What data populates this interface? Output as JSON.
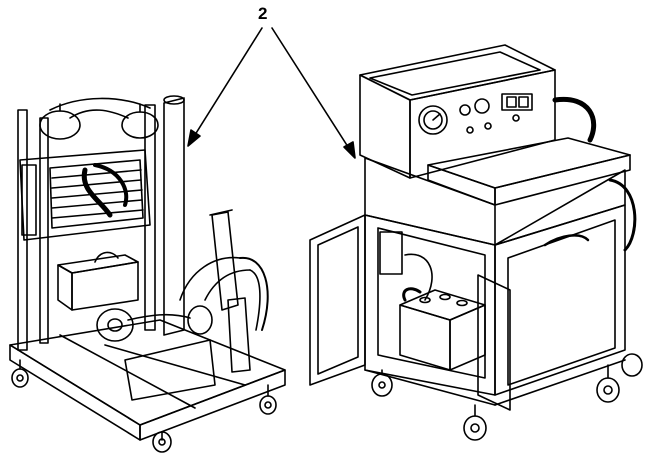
{
  "callout": {
    "number": "2"
  },
  "colors": {
    "ink": "#000000",
    "paper": "#ffffff"
  }
}
